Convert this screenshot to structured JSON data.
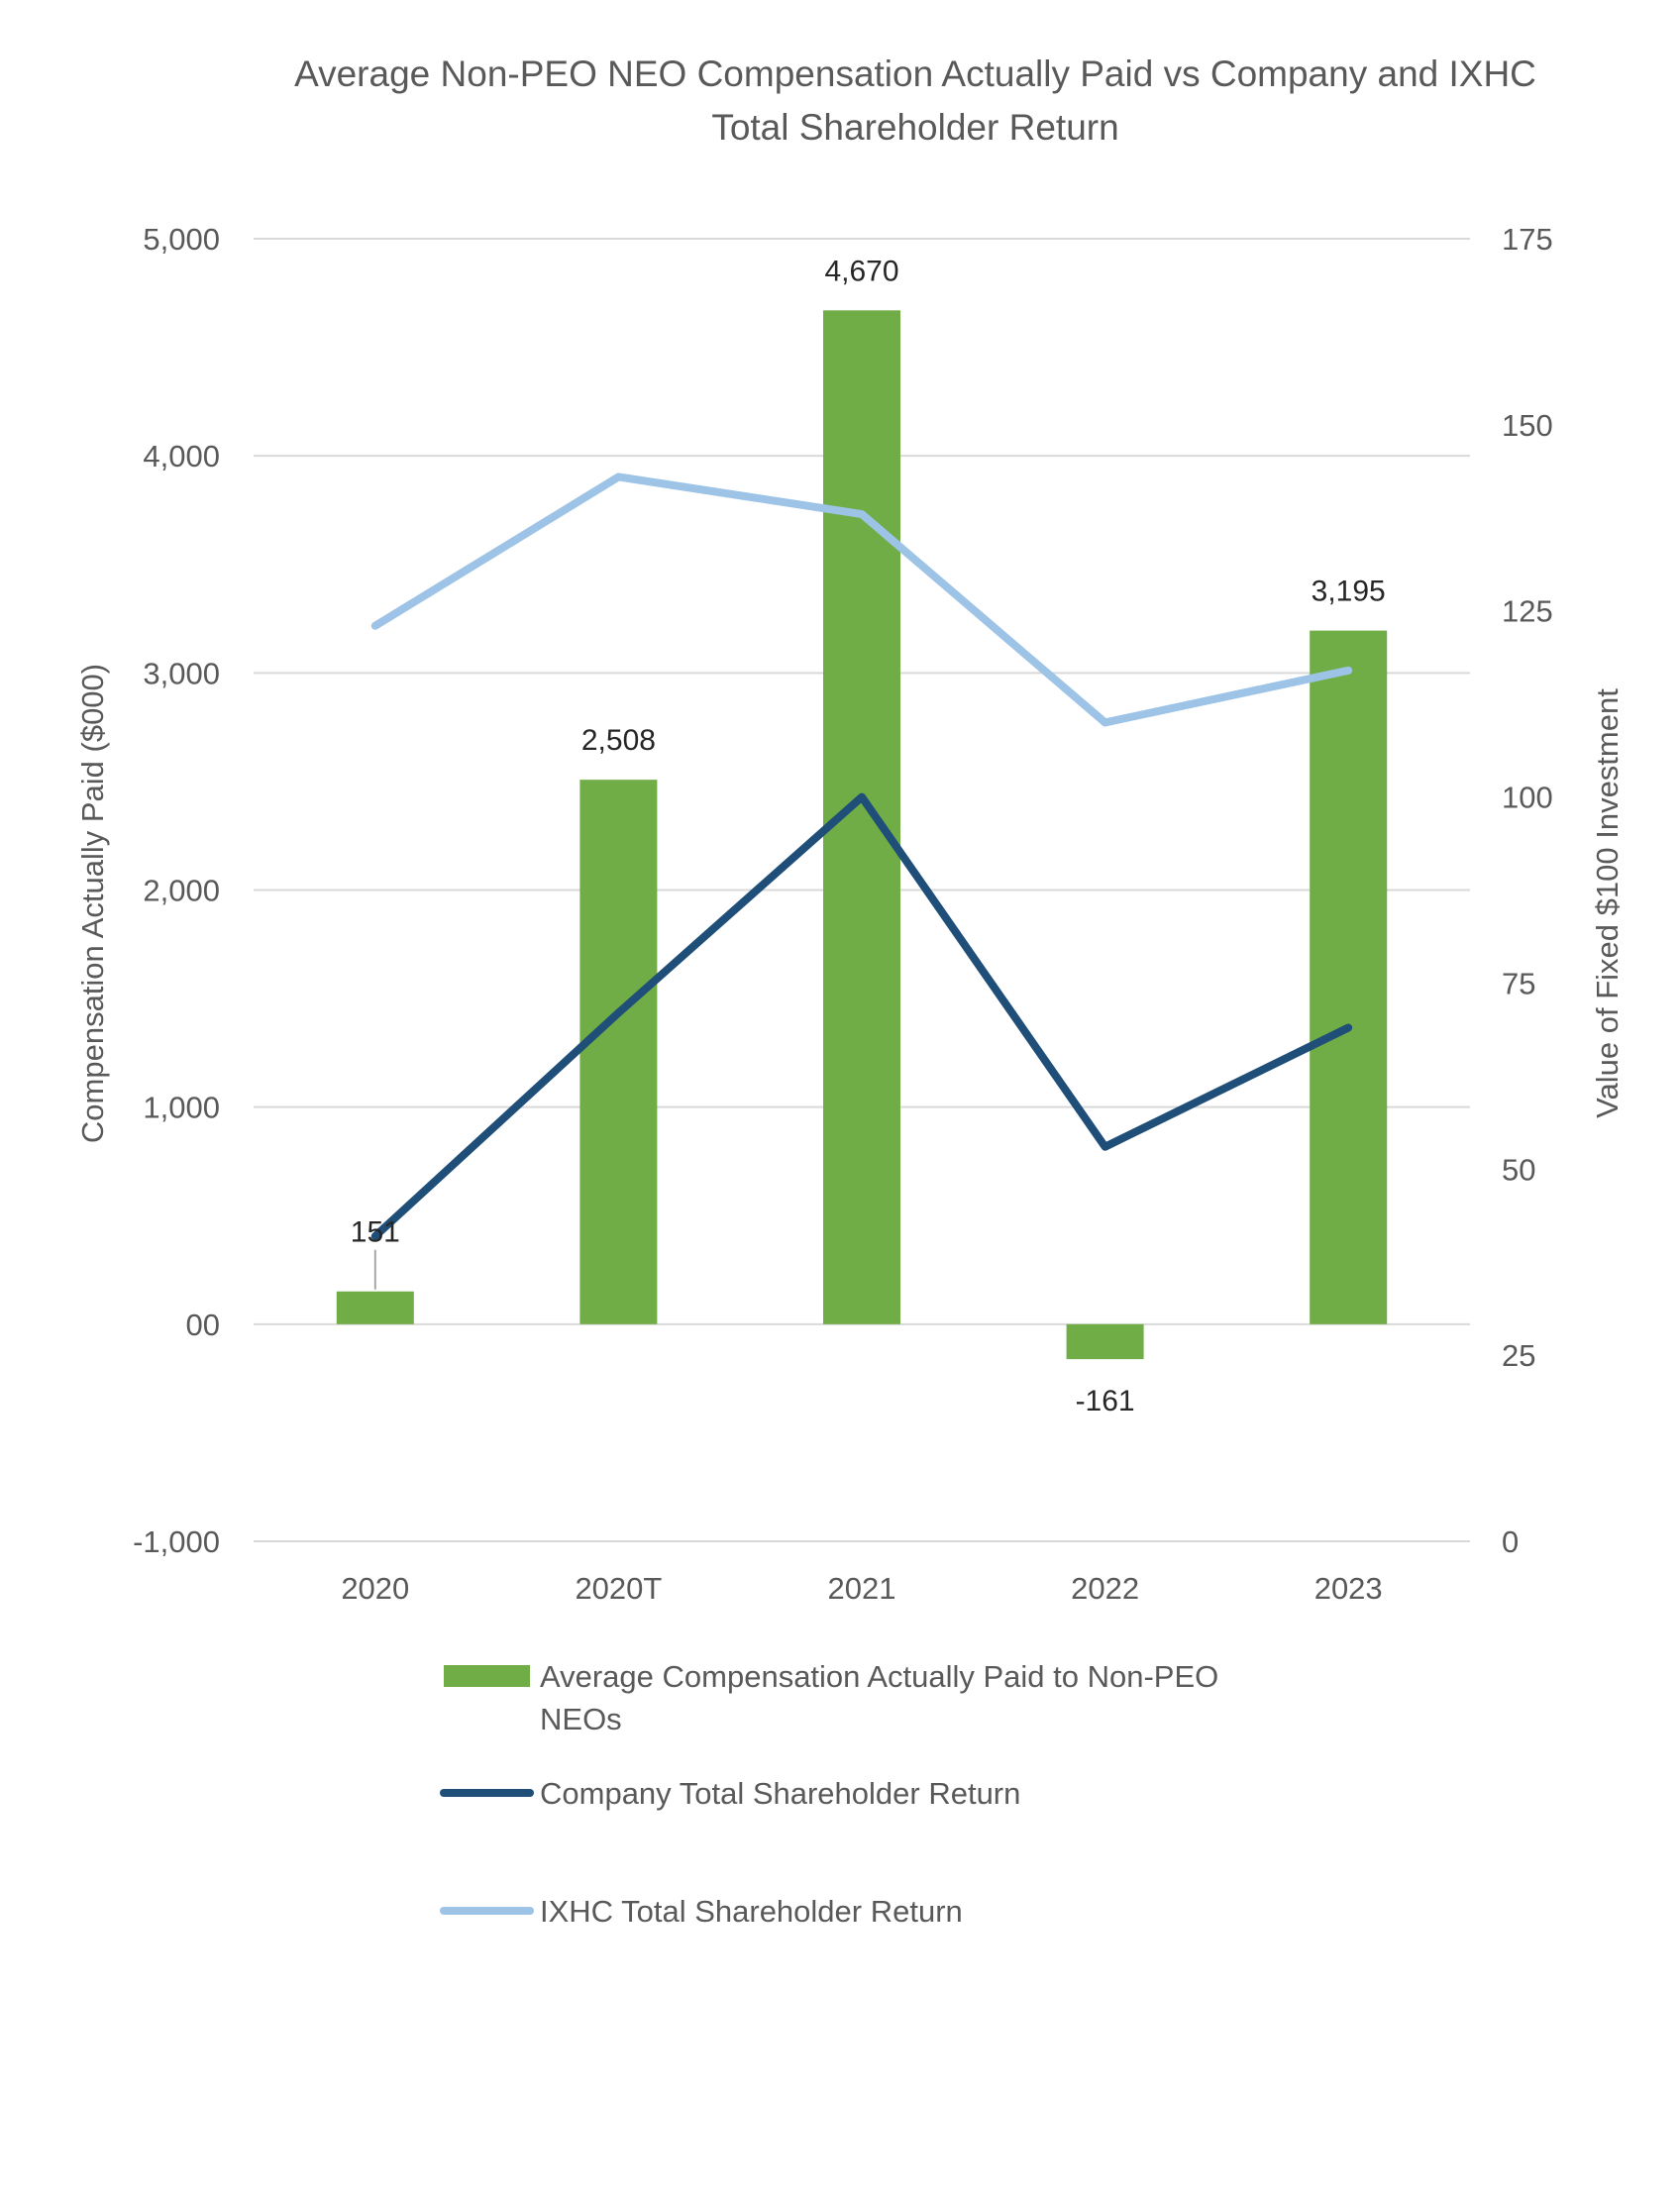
{
  "chart_data": {
    "type": "bar+line",
    "title": "Average Non-PEO NEO Compensation Actually Paid vs Company and IXHC Total Shareholder Return",
    "title_lines": [
      "Average Non-PEO NEO Compensation Actually Paid vs Company and IXHC",
      "Total Shareholder Return"
    ],
    "categories": [
      "2020",
      "2020T",
      "2021",
      "2022",
      "2023"
    ],
    "y_left": {
      "label": "Compensation Actually Paid ($000)",
      "range": [
        -1000,
        5000
      ],
      "ticks": [
        -1000,
        0,
        1000,
        2000,
        3000,
        4000,
        5000
      ],
      "tick_labels": [
        "-1,000",
        "00",
        "1,000",
        "2,000",
        "3,000",
        "4,000",
        "5,000"
      ]
    },
    "y_right": {
      "label": "Value of Fixed $100 Investment",
      "range": [
        0,
        175
      ],
      "ticks": [
        0,
        25,
        50,
        75,
        100,
        125,
        150,
        175
      ],
      "tick_labels": [
        "0",
        "25",
        "50",
        "75",
        "100",
        "125",
        "150",
        "175"
      ]
    },
    "gridlines": true,
    "bars": {
      "name_lines": [
        "Average Compensation Actually Paid to Non-PEO",
        "NEOs"
      ],
      "name": "Average Compensation Actually Paid to Non-PEO NEOs",
      "color": "#70AD47",
      "axis": "left",
      "values": [
        151,
        2508,
        4670,
        -161,
        3195
      ],
      "labels": [
        "151",
        "2,508",
        "4,670",
        "-161",
        "3,195"
      ]
    },
    "lines": [
      {
        "name": "Company Total Shareholder Return",
        "color": "#1F4E79",
        "axis": "right",
        "values": [
          41,
          71,
          100,
          53,
          69
        ]
      },
      {
        "name": "IXHC Total Shareholder Return",
        "color": "#9DC3E6",
        "axis": "right",
        "values": [
          123,
          143,
          138,
          110,
          117
        ]
      }
    ],
    "legend_position": "bottom"
  }
}
